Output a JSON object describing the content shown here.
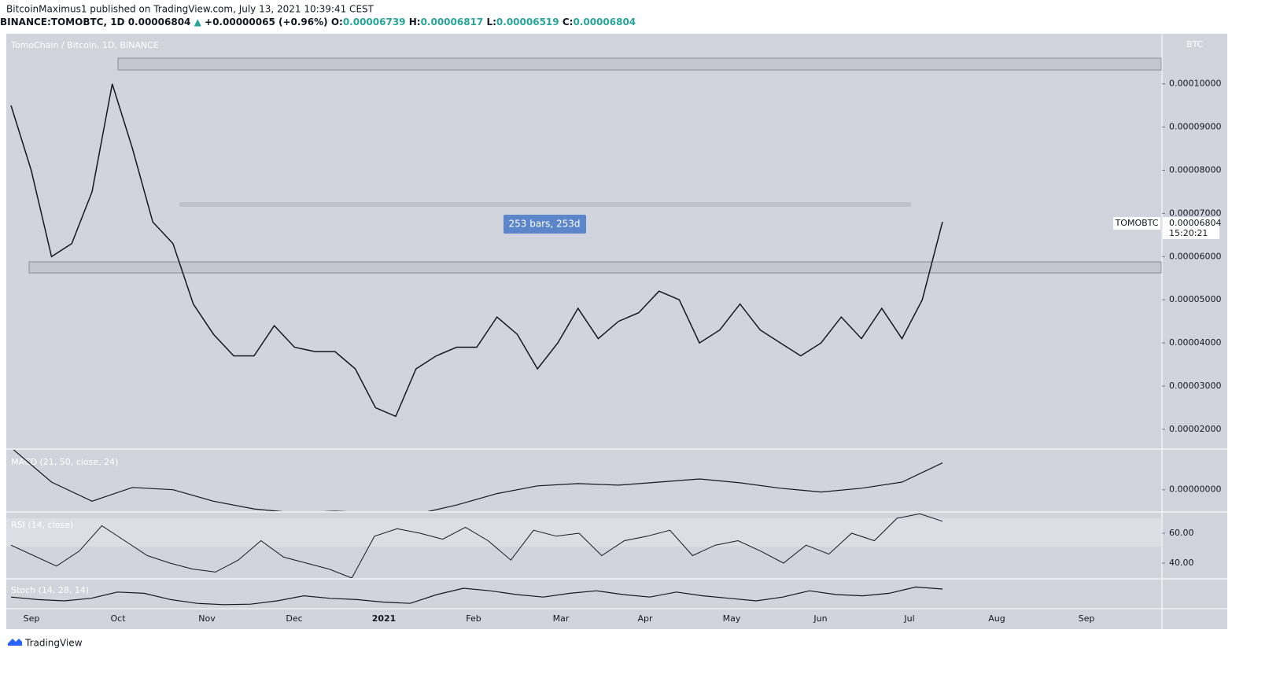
{
  "header": {
    "publisher": "BitcoinMaximus1 published on TradingView.com, July 13, 2021 10:39:41 CEST",
    "symbol": "BINANCE:TOMOBTC, 1D",
    "last": "0.00006804",
    "arrow": "▲",
    "change": "+0.00000065 (+0.96%)",
    "o_label": "O:",
    "o": "0.00006739",
    "h_label": "H:",
    "h": "0.00006817",
    "l_label": "L:",
    "l": "0.00006519",
    "c_label": "C:",
    "c": "0.00006804"
  },
  "pane_title": "TomoChain / Bitcoin, 1D, BINANCE",
  "measure": "253 bars, 253d",
  "currency": "BTC",
  "price_tag": {
    "symbol": "TOMOBTC",
    "price": "0.00006804",
    "countdown": "15:20:21"
  },
  "footer": "TradingView",
  "chart_data": {
    "type": "line",
    "color": "#131722",
    "ylim": [
      1.56e-05,
      0.0001116
    ],
    "yticks": [
      {
        "value": 0.0001,
        "label": "0.00010000"
      },
      {
        "value": 9e-05,
        "label": "0.00009000"
      },
      {
        "value": 8e-05,
        "label": "0.00008000"
      },
      {
        "value": 7e-05,
        "label": "0.00007000"
      },
      {
        "value": 6e-05,
        "label": "0.00006000"
      },
      {
        "value": 5e-05,
        "label": "0.00005000"
      },
      {
        "value": 4e-05,
        "label": "0.00004000"
      },
      {
        "value": 3e-05,
        "label": "0.00003000"
      },
      {
        "value": 2e-05,
        "label": "0.00002000"
      }
    ],
    "xticks": [
      "Sep",
      "Oct",
      "Nov",
      "Dec",
      "2021",
      "Feb",
      "Mar",
      "Apr",
      "May",
      "Jun",
      "Jul",
      "Aug",
      "Sep"
    ],
    "values": [
      9.5e-05,
      8e-05,
      6e-05,
      6.3e-05,
      7.5e-05,
      0.0001,
      8.5e-05,
      6.8e-05,
      6.3e-05,
      4.9e-05,
      4.2e-05,
      3.7e-05,
      3.7e-05,
      4.4e-05,
      3.9e-05,
      3.8e-05,
      3.8e-05,
      3.4e-05,
      2.5e-05,
      2.3e-05,
      3.4e-05,
      3.7e-05,
      3.9e-05,
      3.9e-05,
      4.6e-05,
      4.2e-05,
      3.4e-05,
      4e-05,
      4.8e-05,
      4.1e-05,
      4.5e-05,
      4.7e-05,
      5.2e-05,
      5e-05,
      4e-05,
      4.3e-05,
      4.9e-05,
      4.3e-05,
      4e-05,
      3.7e-05,
      4e-05,
      4.6e-05,
      4.1e-05,
      4.8e-05,
      4.1e-05,
      5e-05,
      6.804e-05
    ],
    "macd": {
      "title": "MACD (21, 50, close, 24)",
      "ylim": [
        -2.8e-06,
        5.2e-06
      ],
      "yticks": [
        {
          "value": 0,
          "label": "0.00000000"
        }
      ],
      "values": [
        5.5e-06,
        1e-06,
        -1.5e-06,
        3e-07,
        0,
        -1.5e-06,
        -2.5e-06,
        -3e-06,
        -2.8e-06,
        -3e-06,
        -3.2e-06,
        -2e-06,
        -5e-07,
        5e-07,
        8e-07,
        6e-07,
        1e-06,
        1.4e-06,
        9e-07,
        2e-07,
        -3e-07,
        2e-07,
        1e-06,
        3.5e-06
      ]
    },
    "rsi": {
      "title": "RSI (14, close)",
      "ylim": [
        30,
        73.7
      ],
      "yticks": [
        {
          "value": 60,
          "label": "60.00"
        },
        {
          "value": 40,
          "label": "40.00"
        }
      ],
      "values": [
        52,
        45,
        38,
        48,
        65,
        55,
        45,
        40,
        36,
        34,
        42,
        55,
        44,
        40,
        36,
        30,
        58,
        63,
        60,
        56,
        64,
        55,
        42,
        62,
        58,
        60,
        45,
        55,
        58,
        62,
        45,
        52,
        55,
        48,
        40,
        52,
        46,
        60,
        55,
        70,
        73,
        68
      ]
    },
    "stoch": {
      "title": "Stoch (14, 28, 14)",
      "ylim": [
        0,
        100
      ],
      "values": [
        40,
        30,
        25,
        35,
        60,
        55,
        30,
        15,
        10,
        12,
        25,
        45,
        35,
        30,
        20,
        15,
        50,
        75,
        65,
        50,
        40,
        55,
        65,
        50,
        40,
        60,
        45,
        35,
        25,
        40,
        65,
        50,
        45,
        55,
        80,
        72
      ]
    }
  }
}
